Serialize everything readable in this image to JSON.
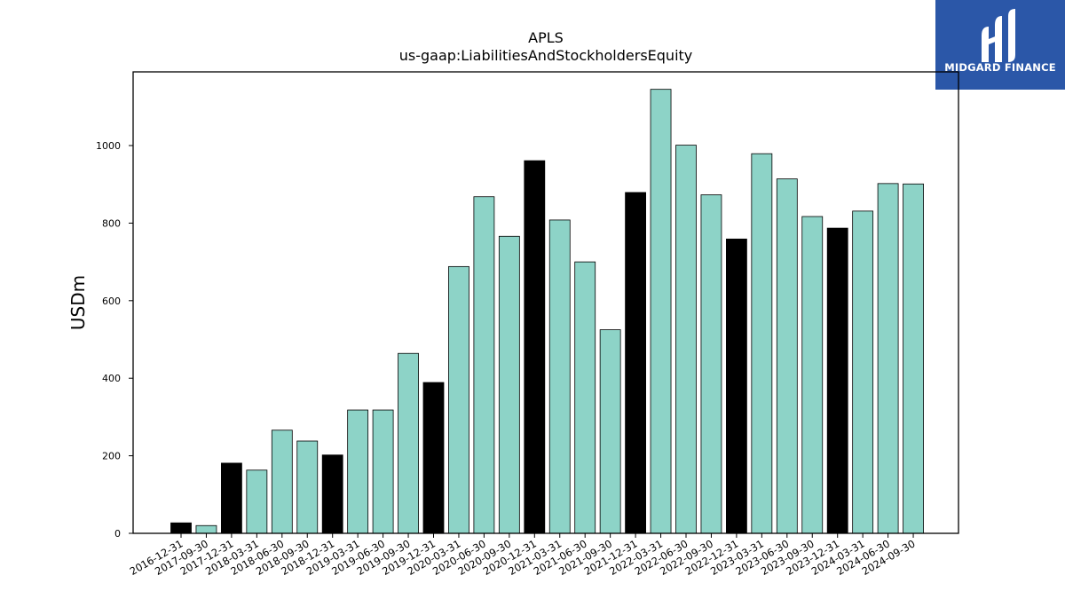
{
  "logo": {
    "text": "MIDGARD FINANCE",
    "icon": "midgard-logo-icon",
    "background": "#2b57a8"
  },
  "chart_data": {
    "type": "bar",
    "title": "APLS",
    "subtitle": "us-gaap:LiabilitiesAndStockholdersEquity",
    "xlabel": "",
    "ylabel": "USDm",
    "ylim": [
      0,
      1190
    ],
    "yticks": [
      0,
      200,
      400,
      600,
      800,
      1000
    ],
    "grid": false,
    "colors": {
      "quarter": "#8dd3c7",
      "year_end": "#000000",
      "edge": "#000000"
    },
    "categories": [
      "2016-12-31",
      "2017-09-30",
      "2017-12-31",
      "2018-03-31",
      "2018-06-30",
      "2018-09-30",
      "2018-12-31",
      "2019-03-31",
      "2019-06-30",
      "2019-09-30",
      "2019-12-31",
      "2020-03-31",
      "2020-06-30",
      "2020-09-30",
      "2020-12-31",
      "2021-03-31",
      "2021-06-30",
      "2021-09-30",
      "2021-12-31",
      "2022-03-31",
      "2022-06-30",
      "2022-09-30",
      "2022-12-31",
      "2023-03-31",
      "2023-06-30",
      "2023-09-30",
      "2023-12-31",
      "2024-03-31",
      "2024-06-30",
      "2024-09-30"
    ],
    "values": [
      27,
      20,
      181,
      163,
      266,
      238,
      202,
      318,
      318,
      464,
      389,
      688,
      868,
      766,
      961,
      808,
      700,
      525,
      879,
      1145,
      1001,
      873,
      759,
      979,
      914,
      817,
      787,
      831,
      902,
      901
    ]
  }
}
